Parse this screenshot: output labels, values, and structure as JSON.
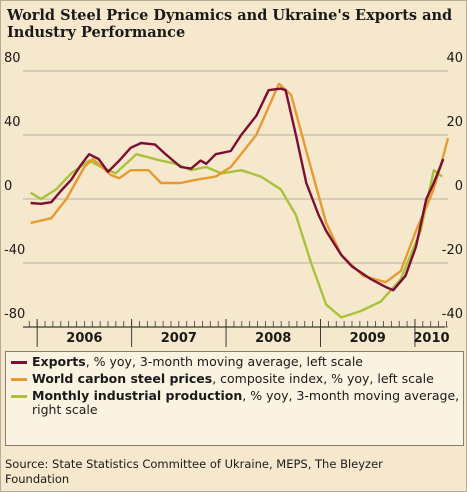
{
  "chart_data": {
    "type": "line",
    "title": "World Steel Price Dynamics and Ukraine's Exports and Industry Performance",
    "xlim": [
      2005.85,
      2010.35
    ],
    "xticks": [
      2006,
      2007,
      2008,
      2009,
      2010
    ],
    "ylim": [
      -80,
      80
    ],
    "yticks": [
      -80,
      -40,
      0,
      40,
      80
    ],
    "y2lim": [
      -40,
      40
    ],
    "y2ticks": [
      -40,
      -20,
      0,
      20,
      40
    ],
    "grid": true,
    "series": [
      {
        "name": "Exports",
        "description": ", % yoy, 3-month moving average, left scale",
        "color": "#7b0f33",
        "axis": "y",
        "x": [
          2005.93,
          2006.04,
          2006.15,
          2006.25,
          2006.36,
          2006.46,
          2006.55,
          2006.65,
          2006.75,
          2006.87,
          2006.99,
          2007.1,
          2007.25,
          2007.36,
          2007.52,
          2007.63,
          2007.73,
          2007.79,
          2007.89,
          2008.05,
          2008.16,
          2008.32,
          2008.45,
          2008.58,
          2008.63,
          2008.74,
          2008.85,
          2008.98,
          2009.06,
          2009.22,
          2009.33,
          2009.53,
          2009.69,
          2009.77,
          2009.9,
          2010.01,
          2010.12,
          2010.2,
          2010.3
        ],
        "values": [
          -2.5,
          -3,
          -2,
          5,
          12,
          21,
          28,
          25,
          17,
          24,
          32,
          35,
          34,
          28,
          20,
          19,
          24,
          22,
          28,
          30,
          40,
          52,
          68,
          69,
          68,
          40,
          10,
          -10,
          -20,
          -35,
          -42,
          -50,
          -55,
          -57,
          -48,
          -30,
          0,
          10,
          25
        ]
      },
      {
        "name": "World carbon steel prices",
        "description": ", composite index, % yoy, left scale",
        "color": "#e59b32",
        "axis": "y",
        "x": [
          2005.93,
          2006.15,
          2006.31,
          2006.5,
          2006.59,
          2006.78,
          2006.87,
          2006.99,
          2007.18,
          2007.31,
          2007.52,
          2007.68,
          2007.89,
          2008.05,
          2008.32,
          2008.56,
          2008.69,
          2008.85,
          2009.06,
          2009.22,
          2009.45,
          2009.69,
          2009.85,
          2010.01,
          2010.12,
          2010.19,
          2010.27,
          2010.35
        ],
        "values": [
          -15,
          -12,
          0,
          20,
          25,
          15,
          13,
          18,
          18,
          10,
          10,
          12,
          14,
          20,
          40,
          72,
          65,
          30,
          -15,
          -35,
          -48,
          -52,
          -45,
          -20,
          -5,
          5,
          20,
          38
        ]
      },
      {
        "name": "Monthly industrial production",
        "description": ", % yoy, 3-month moving average, right scale",
        "color": "#a8c23c",
        "axis": "y2",
        "x": [
          2005.93,
          2006.04,
          2006.2,
          2006.36,
          2006.55,
          2006.68,
          2006.83,
          2007.05,
          2007.31,
          2007.47,
          2007.63,
          2007.79,
          2007.95,
          2008.16,
          2008.37,
          2008.58,
          2008.74,
          2008.9,
          2009.06,
          2009.22,
          2009.43,
          2009.64,
          2009.85,
          2010.06,
          2010.2,
          2010.29
        ],
        "values": [
          2,
          0,
          3,
          8,
          12,
          10,
          8,
          14,
          12,
          11,
          9,
          10,
          8,
          9,
          7,
          3,
          -5,
          -20,
          -33,
          -37,
          -35,
          -32,
          -25,
          -10,
          9,
          7
        ]
      }
    ],
    "source": "Source: State Statistics Committee of Ukraine, MEPS, The Bleyzer Foundation"
  }
}
